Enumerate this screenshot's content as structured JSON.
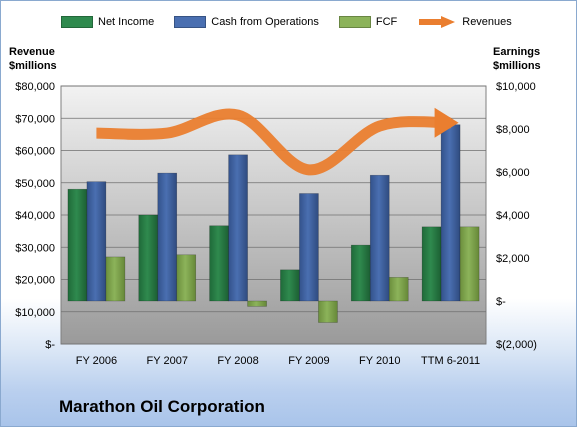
{
  "title": "Marathon Oil Corporation",
  "colors": {
    "net_income": "#2f8a4e",
    "cash_from_operations": "#4a6fb1",
    "fcf": "#8cb35a",
    "revenues": "#ea7e2f"
  },
  "legend": [
    {
      "name": "Net Income",
      "color_key": "net_income",
      "icon": "bar-swatch"
    },
    {
      "name": "Cash from Operations",
      "color_key": "cash_from_operations",
      "icon": "bar-swatch"
    },
    {
      "name": "FCF",
      "color_key": "fcf",
      "icon": "bar-swatch"
    },
    {
      "name": "Revenues",
      "color_key": "revenues",
      "icon": "arrow-icon"
    }
  ],
  "chart_data": {
    "type": "bar",
    "title": "Marathon Oil Corporation",
    "categories": [
      "FY 2006",
      "FY 2007",
      "FY 2008",
      "FY 2009",
      "FY 2010",
      "TTM 6-2011"
    ],
    "left_axis": {
      "label": "Revenue\n$millions",
      "ticks": [
        "$80,000",
        "$70,000",
        "$60,000",
        "$50,000",
        "$40,000",
        "$30,000",
        "$20,000",
        "$10,000",
        "$-"
      ],
      "range": [
        0,
        80000
      ]
    },
    "right_axis": {
      "label": "Earnings\n$millions",
      "ticks": [
        "$10,000",
        "$8,000",
        "$6,000",
        "$4,000",
        "$2,000",
        "$-",
        "$(2,000)"
      ],
      "range": [
        -2000,
        10000
      ]
    },
    "series": [
      {
        "name": "Net Income",
        "axis": "right",
        "type": "bar",
        "values": [
          5200,
          4000,
          3500,
          1450,
          2600,
          3450
        ]
      },
      {
        "name": "Cash from Operations",
        "axis": "right",
        "type": "bar",
        "values": [
          5550,
          5950,
          6800,
          5000,
          5850,
          8200
        ]
      },
      {
        "name": "FCF",
        "axis": "right",
        "type": "bar",
        "values": [
          2050,
          2150,
          -250,
          -1000,
          1100,
          3450
        ]
      },
      {
        "name": "Revenues",
        "axis": "left",
        "type": "line",
        "values": [
          65400,
          65400,
          71000,
          54000,
          67600,
          68600
        ]
      }
    ],
    "grid": true,
    "legend_position": "top"
  }
}
